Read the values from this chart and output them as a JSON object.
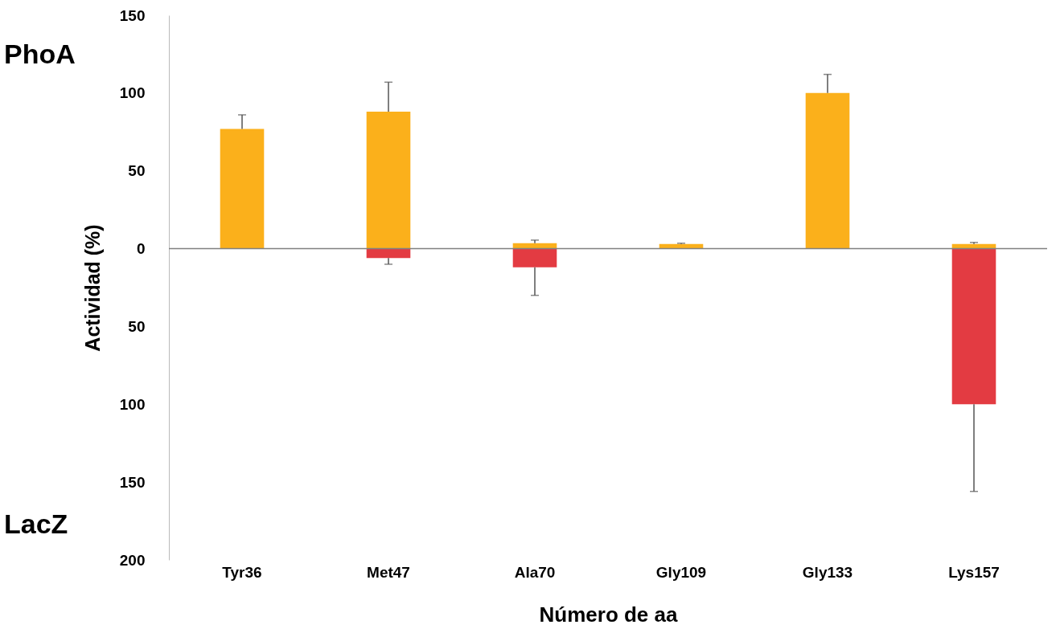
{
  "chart_data": {
    "type": "bar",
    "stacked": true,
    "ylabel": "Actividad (%)",
    "xlabel": "Número de aa",
    "categories": [
      "Tyr36",
      "Met47",
      "Ala70",
      "Gly109",
      "Gly133",
      "Lys157"
    ],
    "series": [
      {
        "color": "#fbb01b",
        "values": [
          77,
          88,
          3.5,
          3,
          100,
          3
        ],
        "errors": [
          [
            77,
            86
          ],
          [
            88,
            107
          ],
          [
            3.5,
            5.5
          ],
          [
            3,
            3.5
          ],
          [
            100,
            112
          ],
          [
            3,
            4
          ]
        ]
      },
      {
        "color": "#e33b42",
        "values": [
          null,
          -6,
          -12,
          null,
          null,
          -100
        ],
        "errors": [
          null,
          [
            -10,
            -6
          ],
          [
            -30,
            -12
          ],
          null,
          null,
          [
            -156,
            -100
          ]
        ]
      }
    ],
    "ylim": [
      -200,
      150
    ],
    "yticks": [
      150,
      100,
      50,
      0,
      {
        "value": -50,
        "label": "50"
      },
      {
        "value": -100,
        "label": "100"
      },
      {
        "value": -150,
        "label": "150"
      },
      {
        "value": -200,
        "label": "200"
      }
    ],
    "ref_lines": [
      {
        "axis": "y",
        "value": 0,
        "color": "#808080"
      }
    ],
    "annotations": [
      "PhoA",
      "LacZ"
    ],
    "grid": false
  }
}
